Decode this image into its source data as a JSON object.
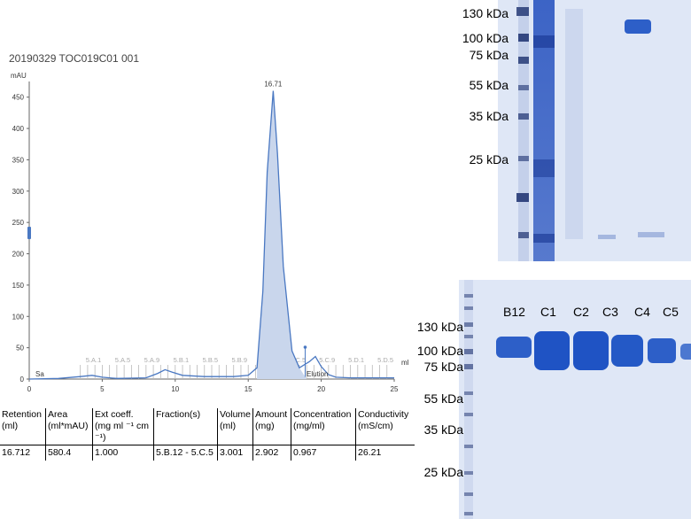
{
  "chromatogram": {
    "title": "20190329 TOC019C01 001",
    "y_unit": "mAU",
    "x_unit": "ml",
    "x_ticks": [
      "0",
      "5",
      "10",
      "15",
      "20",
      "25"
    ],
    "y_ticks": [
      "0",
      "50",
      "100",
      "150",
      "200",
      "250",
      "300",
      "350",
      "400",
      "450"
    ],
    "peak_label": "16.71",
    "fractions": [
      "5.A.1",
      "5.A.5",
      "5.A.9",
      "5.B.1",
      "5.B.5",
      "5.B.9",
      "5.C.1",
      "5.C.5",
      "5.C.9",
      "5.D.1",
      "5.D.5"
    ],
    "markers": [
      "Sa",
      "Elution"
    ]
  },
  "chart_data": {
    "type": "line",
    "title": "20190329 TOC019C01 001",
    "xlabel": "ml",
    "ylabel": "mAU",
    "xlim": [
      0,
      25
    ],
    "ylim": [
      0,
      475
    ],
    "series": [
      {
        "x": [
          0,
          2,
          3.5,
          4.3,
          5,
          6,
          8,
          8.8,
          9.3,
          9.8,
          10.5,
          12,
          14,
          15,
          15.6,
          16,
          16.3,
          16.71,
          17,
          17.4,
          18,
          18.5,
          19.2,
          19.6,
          20,
          20.5,
          21,
          22,
          23,
          25
        ],
        "y": [
          0,
          1,
          4,
          6,
          3,
          1,
          2,
          9,
          15,
          11,
          6,
          4,
          4,
          6,
          18,
          140,
          330,
          460,
          360,
          180,
          45,
          18,
          28,
          36,
          20,
          7,
          3,
          2,
          2,
          2
        ]
      }
    ]
  },
  "results_table": {
    "headers": [
      "Retention (ml)",
      "Area (ml*mAU)",
      "Ext coeff. (mg ml ⁻¹ cm ⁻¹)",
      "Fraction(s)",
      "Volume (ml)",
      "Amount (mg)",
      "Concentration (mg/ml)",
      "Conductivity (mS/cm)"
    ],
    "row": [
      "16.712",
      "580.4",
      "1.000",
      "5.B.12 - 5.C.5",
      "3.001",
      "2.902",
      "0.967",
      "26.21"
    ]
  },
  "gel_top": {
    "markers": [
      "130 kDa",
      "100 kDa",
      "75 kDa",
      "55 kDa",
      "35 kDa",
      "25 kDa"
    ]
  },
  "gel_bottom": {
    "markers": [
      "130 kDa",
      "100 kDa",
      "75 kDa",
      "55 kDa",
      "35 kDa",
      "25 kDa"
    ],
    "lanes": [
      "B12",
      "C1",
      "C2",
      "C3",
      "C4",
      "C5"
    ]
  },
  "colors": {
    "trace": "#4a78c2",
    "trace_fill": "#c9d6ec",
    "gel_bg": "#dfe7f6",
    "band": "#2d5fc8",
    "ladder": "#1b2f6e"
  }
}
